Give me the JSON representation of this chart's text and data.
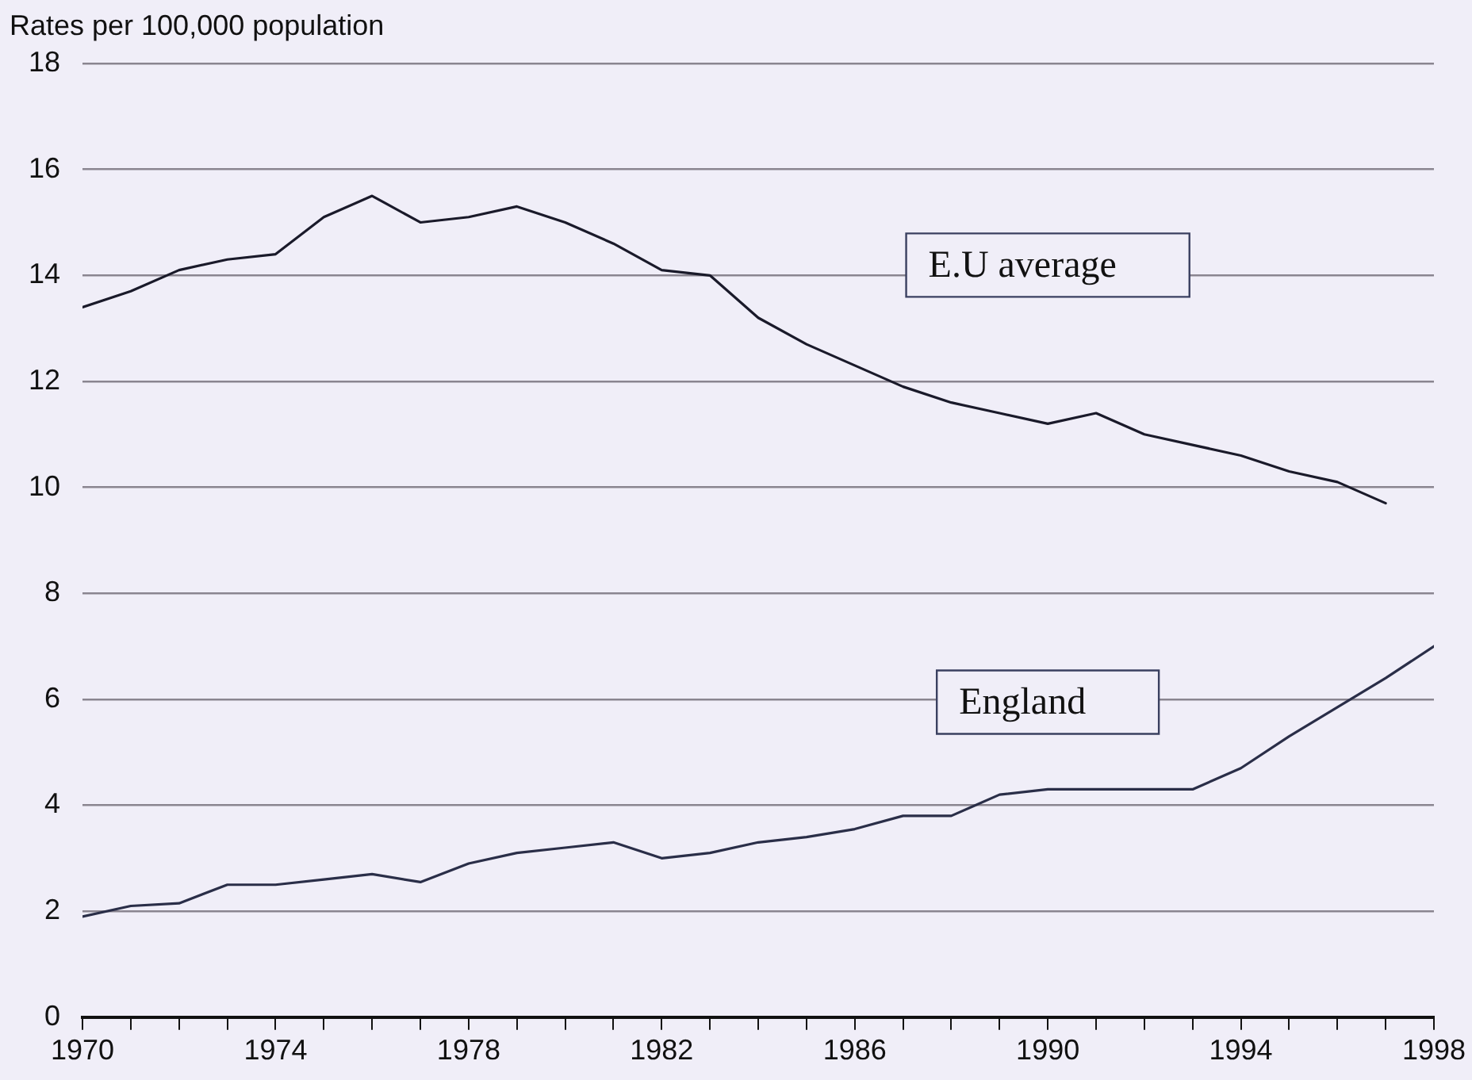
{
  "chart_data": {
    "type": "line",
    "ylabel": "Rates per 100,000 population",
    "x": [
      1970,
      1971,
      1972,
      1973,
      1974,
      1975,
      1976,
      1977,
      1978,
      1979,
      1980,
      1981,
      1982,
      1983,
      1984,
      1985,
      1986,
      1987,
      1988,
      1989,
      1990,
      1991,
      1992,
      1993,
      1994,
      1995,
      1996,
      1997,
      1998
    ],
    "series": [
      {
        "name": "E.U average",
        "color": "#1a1a2a",
        "values": [
          13.4,
          13.7,
          14.1,
          14.3,
          14.4,
          15.1,
          15.5,
          15.0,
          15.1,
          15.3,
          15.0,
          14.6,
          14.1,
          14.0,
          13.2,
          12.7,
          12.3,
          11.9,
          11.6,
          11.4,
          11.2,
          11.4,
          11.0,
          10.8,
          10.6,
          10.3,
          10.1,
          9.7,
          null
        ]
      },
      {
        "name": "England",
        "color": "#2a2e48",
        "values": [
          1.9,
          2.1,
          2.15,
          2.5,
          2.5,
          2.6,
          2.7,
          2.55,
          2.9,
          3.1,
          3.2,
          3.3,
          3.0,
          3.1,
          3.3,
          3.4,
          3.55,
          3.8,
          3.8,
          4.2,
          4.3,
          4.3,
          4.3,
          4.3,
          4.7,
          5.3,
          5.85,
          6.4,
          7.0
        ]
      }
    ],
    "xlim": [
      1970,
      1998
    ],
    "xticks": [
      1970,
      {
        "value": 1971,
        "label": null
      },
      {
        "value": 1972,
        "label": null
      },
      {
        "value": 1973,
        "label": null
      },
      1974,
      {
        "value": 1975,
        "label": null
      },
      {
        "value": 1976,
        "label": null
      },
      {
        "value": 1977,
        "label": null
      },
      1978,
      {
        "value": 1979,
        "label": null
      },
      {
        "value": 1980,
        "label": null
      },
      {
        "value": 1981,
        "label": null
      },
      1982,
      {
        "value": 1983,
        "label": null
      },
      {
        "value": 1984,
        "label": null
      },
      {
        "value": 1985,
        "label": null
      },
      1986,
      {
        "value": 1987,
        "label": null
      },
      {
        "value": 1988,
        "label": null
      },
      {
        "value": 1989,
        "label": null
      },
      1990,
      {
        "value": 1991,
        "label": null
      },
      {
        "value": 1992,
        "label": null
      },
      {
        "value": 1993,
        "label": null
      },
      1994,
      {
        "value": 1995,
        "label": null
      },
      {
        "value": 1996,
        "label": null
      },
      {
        "value": 1997,
        "label": null
      },
      1998
    ],
    "ylim": [
      0,
      18
    ],
    "yticks": [
      0,
      2,
      4,
      6,
      8,
      10,
      12,
      14,
      16,
      18
    ],
    "grid": "y",
    "legend": false,
    "marker": "none",
    "line_style": "solid"
  }
}
